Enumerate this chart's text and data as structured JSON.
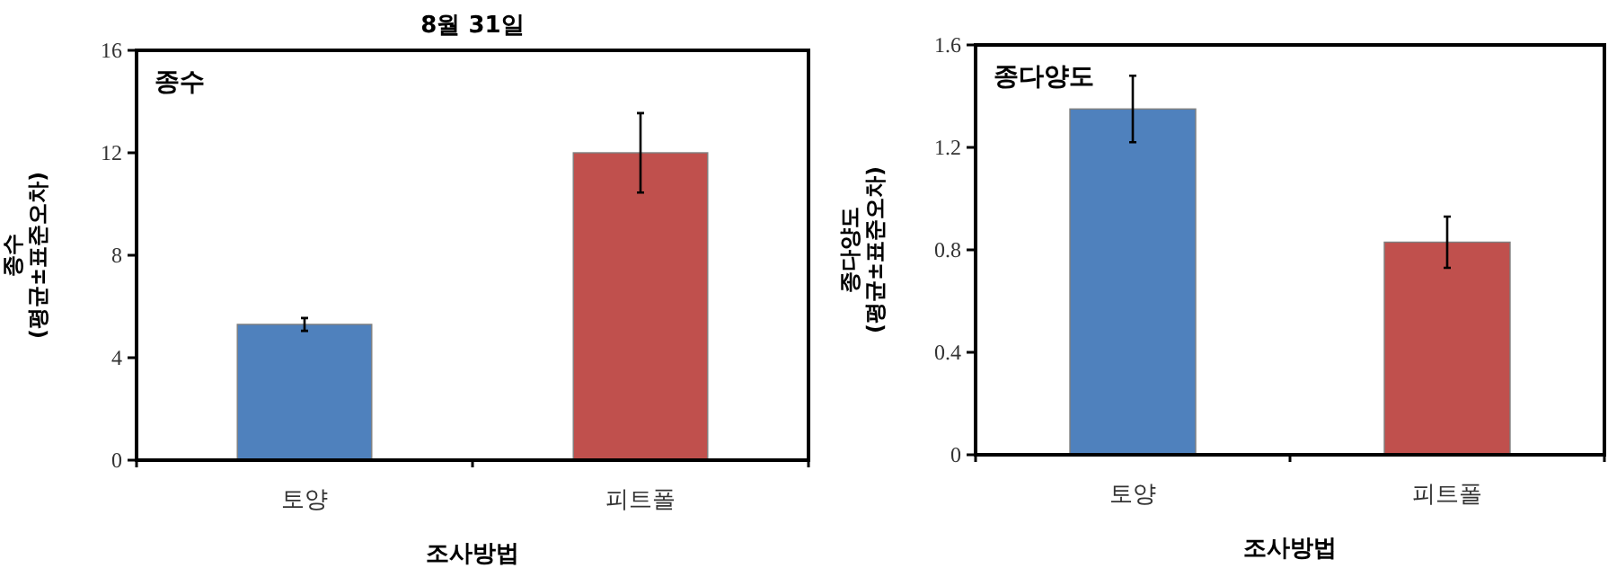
{
  "chart_data": [
    {
      "type": "bar",
      "title": "8월 31일",
      "xlabel": "조사방법",
      "ylabel": "종수\n(평균±표준오차)",
      "annotations": [
        "종수"
      ],
      "categories": [
        "토양",
        "피트폴"
      ],
      "values": [
        5.3,
        12.0
      ],
      "colors": [
        "#4f81bd",
        "#c0504d"
      ],
      "errors": [
        0.25,
        1.55
      ],
      "ylim": [
        0,
        16
      ],
      "yticks": [
        0,
        4,
        8,
        12,
        16
      ]
    },
    {
      "type": "bar",
      "xlabel": "조사방법",
      "ylabel": "종다양도\n(평균±표준오차)",
      "annotations": [
        "종다양도"
      ],
      "categories": [
        "토양",
        "피트폴"
      ],
      "values": [
        1.35,
        0.83
      ],
      "colors": [
        "#4f81bd",
        "#c0504d"
      ],
      "errors": [
        0.13,
        0.1
      ],
      "ylim": [
        0,
        1.6
      ],
      "yticks": [
        0,
        0.4,
        0.8,
        1.2,
        1.6
      ]
    }
  ]
}
